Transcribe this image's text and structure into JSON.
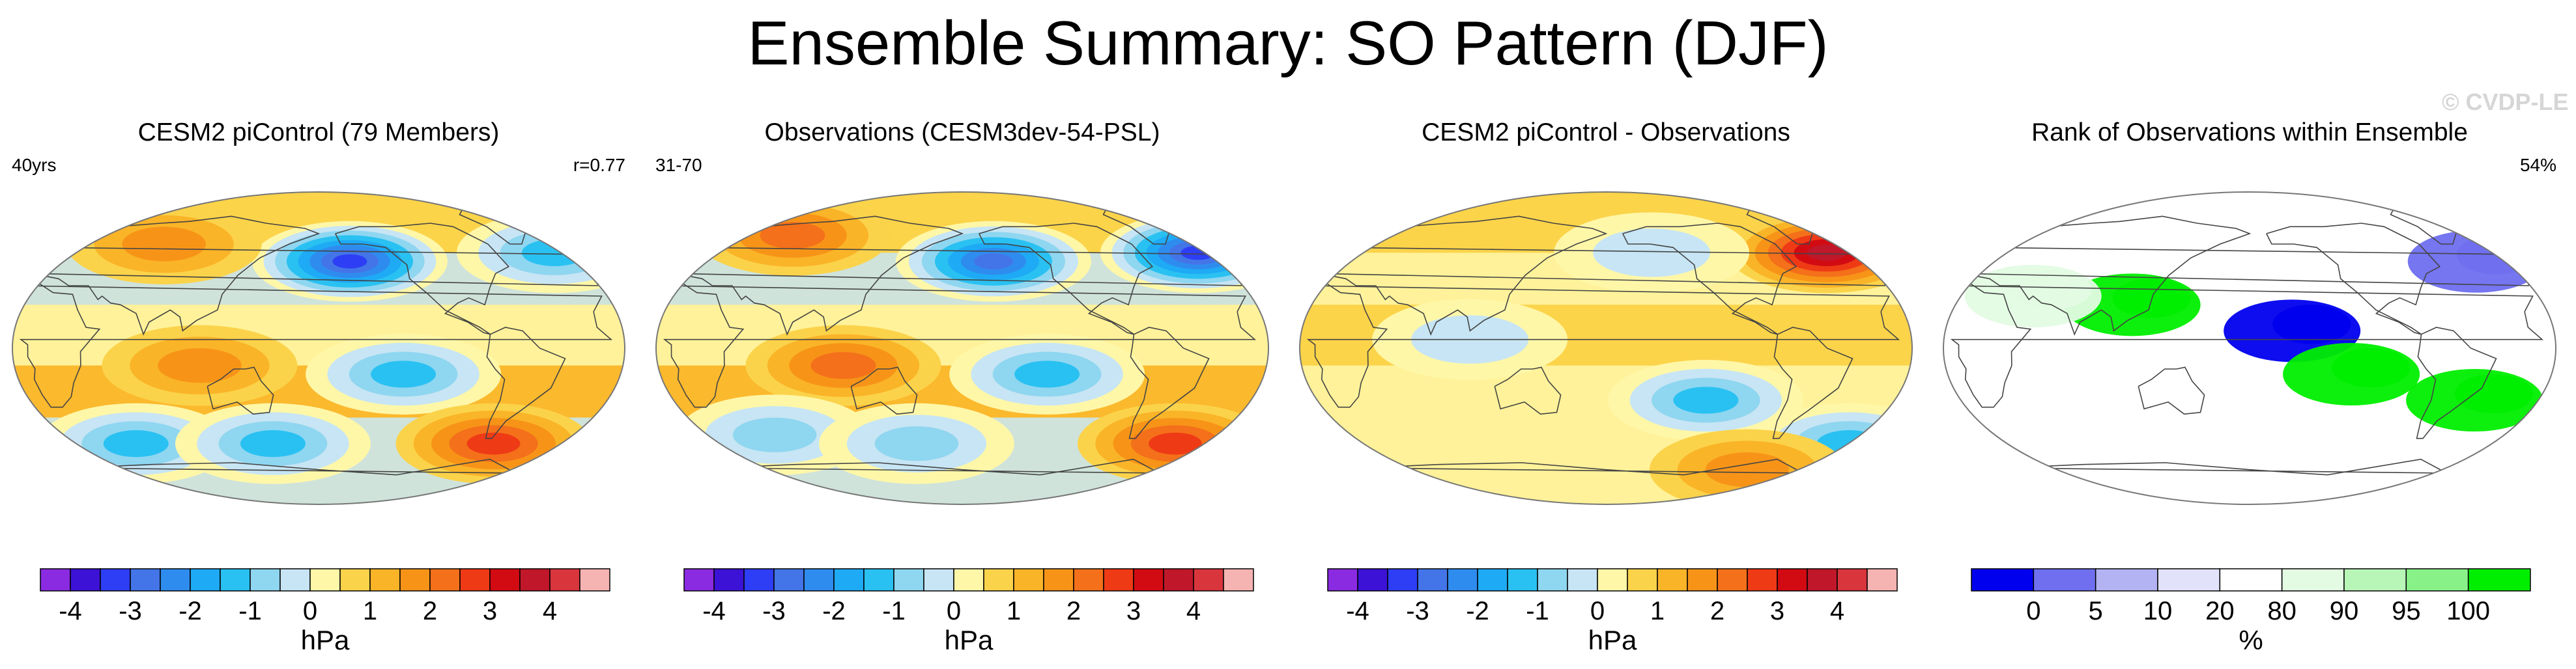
{
  "figure": {
    "title": "Ensemble Summary: SO Pattern (DJF)",
    "watermark": "© CVDP-LE"
  },
  "colors": {
    "hpa_scale": [
      "#8a2be2",
      "#3c12d6",
      "#2d3ef4",
      "#4375e8",
      "#2f8cef",
      "#1eaaf5",
      "#29c1f2",
      "#8fd6f0",
      "#c7e5f4",
      "#fff7a8",
      "#fbd34a",
      "#fab428",
      "#f79418",
      "#f4701a",
      "#ef3a16",
      "#d20b13",
      "#c0172a",
      "#d9353c",
      "#f5b3b2"
    ],
    "rank_scale": [
      "#0000ee",
      "#6f6ff0",
      "#b3b3f3",
      "#e2e2fb",
      "#ffffff",
      "#e3fbe3",
      "#b8f6b8",
      "#88f288",
      "#00ee00"
    ]
  },
  "chart_data": [
    {
      "type": "map",
      "title": "CESM2 piControl (79 Members)",
      "left_note": "40yrs",
      "right_note": "r=0.77",
      "colorbar": {
        "units": "hPa",
        "ticks": [
          "-4",
          "-3",
          "-2",
          "-1",
          "0",
          "1",
          "2",
          "3",
          "4"
        ],
        "levels": [
          -4.5,
          -4,
          -3.5,
          -3,
          -2.5,
          -2,
          -1.5,
          -1,
          -0.5,
          0,
          0.5,
          1,
          1.5,
          2,
          2.5,
          3,
          3.5,
          4,
          4.5
        ]
      },
      "features": [
        {
          "lon": -160,
          "lat": 50,
          "value": -4.2,
          "label": "north-pacific-low"
        },
        {
          "lon": -25,
          "lat": 55,
          "value": -2.2,
          "label": "north-atlantic-low"
        },
        {
          "lon": 75,
          "lat": 60,
          "value": 1.6,
          "label": "siberian-high"
        },
        {
          "lon": 110,
          "lat": -10,
          "value": 1.6,
          "label": "maritime-continent-high"
        },
        {
          "lon": -130,
          "lat": -15,
          "value": -1.8,
          "label": "south-pacific-low"
        },
        {
          "lon": -65,
          "lat": -55,
          "value": 2.6,
          "label": "drake-passage-high"
        },
        {
          "lon": 60,
          "lat": -55,
          "value": -1.8,
          "label": "indian-ocean-low"
        },
        {
          "lon": 150,
          "lat": -55,
          "value": -1.8,
          "label": "tasman-low"
        }
      ]
    },
    {
      "type": "map",
      "title": "Observations (CESM3dev-54-PSL)",
      "left_note": "31-70",
      "right_note": "",
      "colorbar": {
        "units": "hPa",
        "ticks": [
          "-4",
          "-3",
          "-2",
          "-1",
          "0",
          "1",
          "2",
          "3",
          "4"
        ],
        "levels": [
          -4.5,
          -4,
          -3.5,
          -3,
          -2.5,
          -2,
          -1.5,
          -1,
          -0.5,
          0,
          0.5,
          1,
          1.5,
          2,
          2.5,
          3,
          3.5,
          4,
          4.5
        ]
      },
      "features": [
        {
          "lon": -160,
          "lat": 50,
          "value": -3.4,
          "label": "north-pacific-low"
        },
        {
          "lon": -25,
          "lat": 55,
          "value": -4.0,
          "label": "north-atlantic-low"
        },
        {
          "lon": 60,
          "lat": 65,
          "value": 1.8,
          "label": "eurasian-high"
        },
        {
          "lon": 110,
          "lat": -10,
          "value": 2.2,
          "label": "maritime-continent-high"
        },
        {
          "lon": -130,
          "lat": -15,
          "value": -2.0,
          "label": "south-pacific-low"
        },
        {
          "lon": -40,
          "lat": -55,
          "value": 2.4,
          "label": "south-atlantic-high"
        },
        {
          "lon": 60,
          "lat": -50,
          "value": -1.4,
          "label": "indian-ocean-low"
        },
        {
          "lon": 150,
          "lat": -55,
          "value": -1.5,
          "label": "tasman-low"
        }
      ]
    },
    {
      "type": "map",
      "title": "CESM2 piControl - Observations",
      "left_note": "",
      "right_note": "",
      "colorbar": {
        "units": "hPa",
        "ticks": [
          "-4",
          "-3",
          "-2",
          "-1",
          "0",
          "1",
          "2",
          "3",
          "4"
        ],
        "levels": [
          -4.5,
          -4,
          -3.5,
          -3,
          -2.5,
          -2,
          -1.5,
          -1,
          -0.5,
          0,
          0.5,
          1,
          1.5,
          2,
          2.5,
          3,
          3.5,
          4,
          4.5
        ]
      },
      "features": [
        {
          "lon": -35,
          "lat": 55,
          "value": 3.6,
          "label": "north-atlantic-positive"
        },
        {
          "lon": -150,
          "lat": 55,
          "value": -1.0,
          "label": "north-pacific-negative"
        },
        {
          "lon": -120,
          "lat": -30,
          "value": -1.8,
          "label": "south-pacific-negative"
        },
        {
          "lon": -20,
          "lat": -55,
          "value": -2.2,
          "label": "south-atlantic-negative"
        },
        {
          "lon": -75,
          "lat": -70,
          "value": 1.5,
          "label": "antarctic-positive"
        },
        {
          "lon": 100,
          "lat": 5,
          "value": -0.8,
          "label": "indo-pacific-negative"
        }
      ]
    },
    {
      "type": "map",
      "title": "Rank of Observations within Ensemble",
      "left_note": "",
      "right_note": "54%",
      "colorbar": {
        "units": "%",
        "ticks": [
          "0",
          "5",
          "10",
          "20",
          "80",
          "90",
          "95",
          "100"
        ],
        "levels": [
          0,
          5,
          10,
          20,
          80,
          90,
          95,
          100
        ]
      },
      "features": [
        {
          "lon": -155,
          "lat": 10,
          "value": 0,
          "label": "central-pacific-low-rank"
        },
        {
          "lon": -35,
          "lat": 50,
          "value": 2,
          "label": "north-atlantic-low-rank"
        },
        {
          "lon": 110,
          "lat": 25,
          "value": 100,
          "label": "asia-high-rank"
        },
        {
          "lon": -45,
          "lat": -30,
          "value": 100,
          "label": "south-atlantic-high-rank"
        },
        {
          "lon": -120,
          "lat": -15,
          "value": 100,
          "label": "south-pacific-high-rank"
        },
        {
          "lon": 50,
          "lat": 30,
          "value": 85,
          "label": "middle-east-moderate"
        }
      ]
    }
  ]
}
